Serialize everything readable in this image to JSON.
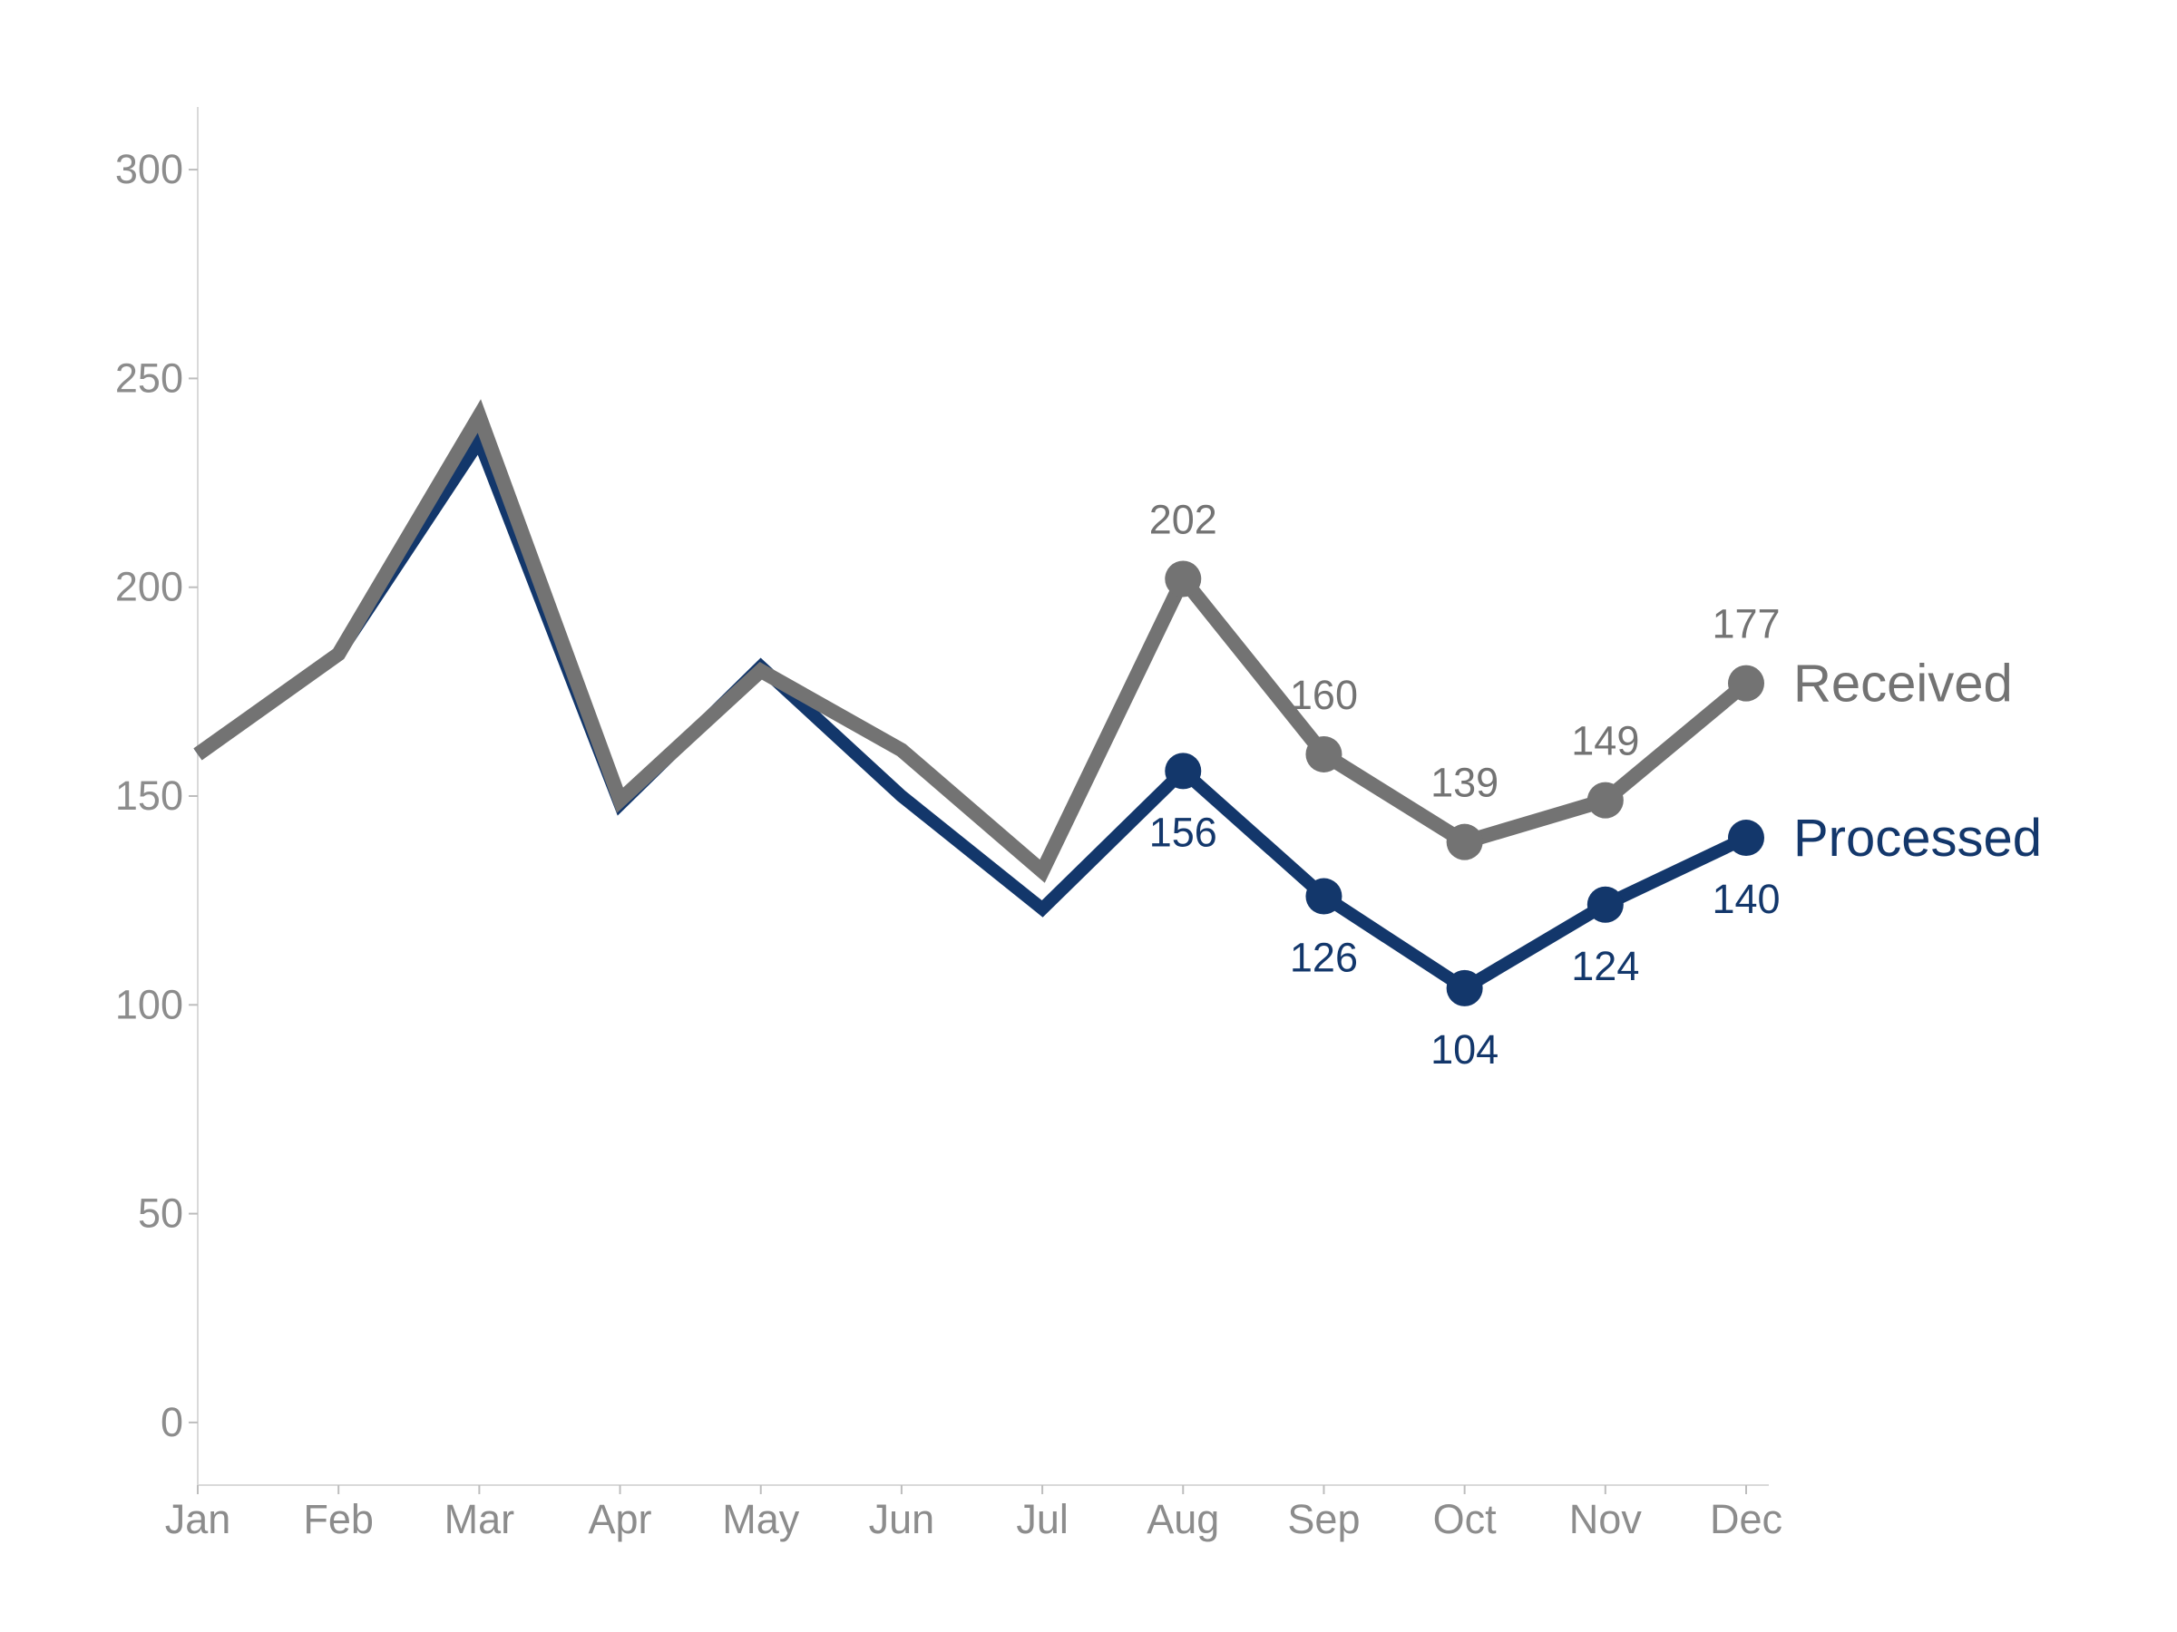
{
  "chart_data": {
    "type": "line",
    "categories": [
      "Jan",
      "Feb",
      "Mar",
      "Apr",
      "May",
      "Jun",
      "Jul",
      "Aug",
      "Sep",
      "Oct",
      "Nov",
      "Dec"
    ],
    "ylim": [
      -15,
      315
    ],
    "yticks": [
      0,
      50,
      100,
      150,
      200,
      250,
      300
    ],
    "grid": false,
    "legend": "direct labels at right end of lines",
    "series": [
      {
        "name": "Received",
        "color": "#737373",
        "values": [
          160,
          184,
          241,
          149,
          180,
          161,
          132,
          202,
          160,
          139,
          149,
          177
        ],
        "labeled_from_index": 7,
        "label_position": "above"
      },
      {
        "name": "Processed",
        "color": "#13376b",
        "values": [
          160,
          184,
          235,
          148,
          181,
          150,
          123,
          156,
          126,
          104,
          124,
          140
        ],
        "labeled_from_index": 7,
        "label_position": "below"
      }
    ]
  },
  "colors": {
    "axis": "#d9d9d9",
    "tick_text": "#8c8c8c"
  }
}
